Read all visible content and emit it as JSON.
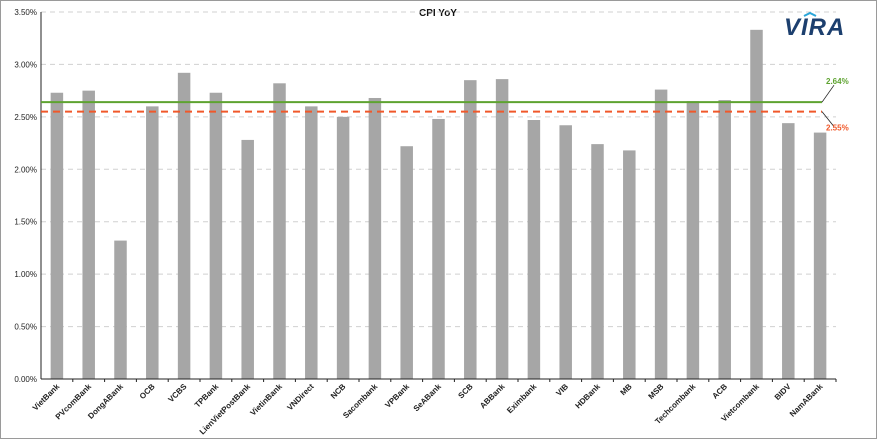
{
  "logo": {
    "text": "VIRA"
  },
  "chart_data": {
    "type": "bar",
    "title": "CPI YoY",
    "xlabel": "",
    "ylabel": "",
    "ylim": [
      0,
      0.035
    ],
    "yticks": [
      "0.00%",
      "0.50%",
      "1.00%",
      "1.50%",
      "2.00%",
      "2.50%",
      "3.00%",
      "3.50%"
    ],
    "grid": true,
    "categories": [
      "VietBank",
      "PVcomBank",
      "DongABank",
      "OCB",
      "VCBS",
      "TPBank",
      "LienVietPostBank",
      "VietinBank",
      "VNDirect",
      "NCB",
      "Sacombank",
      "VPBank",
      "SeABank",
      "SCB",
      "ABBank",
      "Eximbank",
      "VIB",
      "HDBank",
      "MB",
      "MSB",
      "Techcombank",
      "ACB",
      "Vietcombank",
      "BIDV",
      "NamABank"
    ],
    "values": [
      0.0273,
      0.0275,
      0.0132,
      0.026,
      0.0292,
      0.0273,
      0.0228,
      0.0282,
      0.026,
      0.025,
      0.0268,
      0.0222,
      0.0248,
      0.0285,
      0.0286,
      0.0247,
      0.0242,
      0.0224,
      0.0218,
      0.0276,
      0.0265,
      0.0266,
      0.0333,
      0.0244,
      0.0235
    ],
    "bar_color": "#a6a6a6",
    "reference_lines": [
      {
        "value": 0.0264,
        "label": "2.64%",
        "color": "#5ea330",
        "style": "solid"
      },
      {
        "value": 0.0255,
        "label": "2.55%",
        "color": "#f0582a",
        "style": "dashed"
      }
    ]
  },
  "colors": {
    "logo_blue": "#1c3f6e",
    "logo_accent": "#2aa5d8",
    "grid": "#d0d0d0",
    "axis": "#222222"
  }
}
